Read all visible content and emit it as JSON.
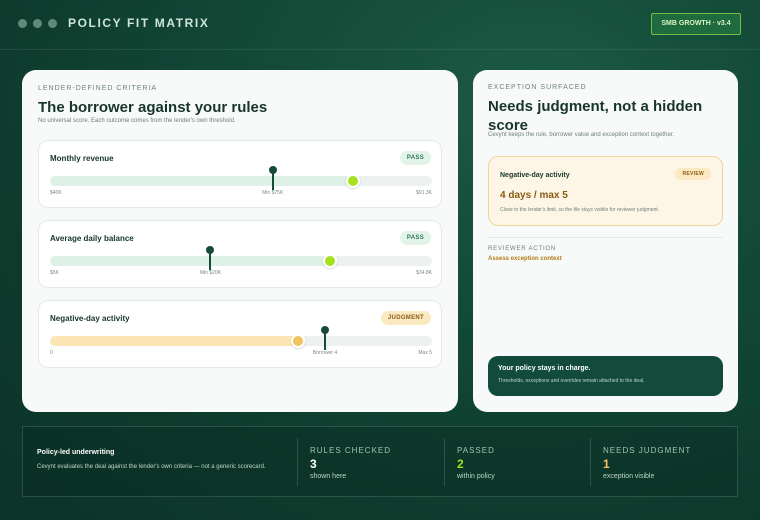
{
  "window": {
    "title": "POLICY FIT MATRIX",
    "version_badge": "SMB GROWTH · v3.4"
  },
  "criteria": {
    "eyebrow": "LENDER-DEFINED CRITERIA",
    "title": "The borrower against your rules",
    "subtitle": "No universal score. Each outcome comes from the lender's own threshold.",
    "rules": [
      {
        "name": "Monthly revenue",
        "status": "PASS",
        "min_label": "$40K",
        "threshold_label": "Min $75K",
        "max_label": "$91.3K",
        "value_fraction": 0.793,
        "threshold_fraction": 0.583
      },
      {
        "name": "Average daily balance",
        "status": "PASS",
        "min_label": "$5K",
        "threshold_label": "Min $20K",
        "max_label": "$34.8K",
        "value_fraction": 0.734,
        "threshold_fraction": 0.42
      },
      {
        "name": "Negative-day activity",
        "status": "JUDGMENT",
        "min_label": "0",
        "threshold_label": "Borrower 4",
        "max_label": "Max 5",
        "value_fraction": 0.65,
        "threshold_fraction": 0.72
      }
    ]
  },
  "exception": {
    "eyebrow": "EXCEPTION SURFACED",
    "title": "Needs judgment, not a hidden score",
    "subtitle": "Cevynt keeps the rule, borrower value and exception context together.",
    "card": {
      "title": "Negative-day activity",
      "status": "REVIEW",
      "value": "4 days / max 5",
      "note": "Close to the lender's limit, so the file stays visible for reviewer judgment."
    },
    "reviewer": {
      "label": "REVIEWER ACTION",
      "action": "Assess exception context"
    },
    "policy": {
      "title": "Your policy stays in charge.",
      "note": "Thresholds, exceptions and overrides remain attached to the deal."
    }
  },
  "summary": {
    "title": "Policy-led underwriting",
    "description": "Cevynt evaluates the deal against the lender's own criteria — not a generic scorecard.",
    "stats": [
      {
        "label": "RULES CHECKED",
        "value": "3",
        "note": "shown here"
      },
      {
        "label": "PASSED",
        "value": "2",
        "note": "within policy"
      },
      {
        "label": "NEEDS JUDGMENT",
        "value": "1",
        "note": "exception visible"
      }
    ]
  }
}
